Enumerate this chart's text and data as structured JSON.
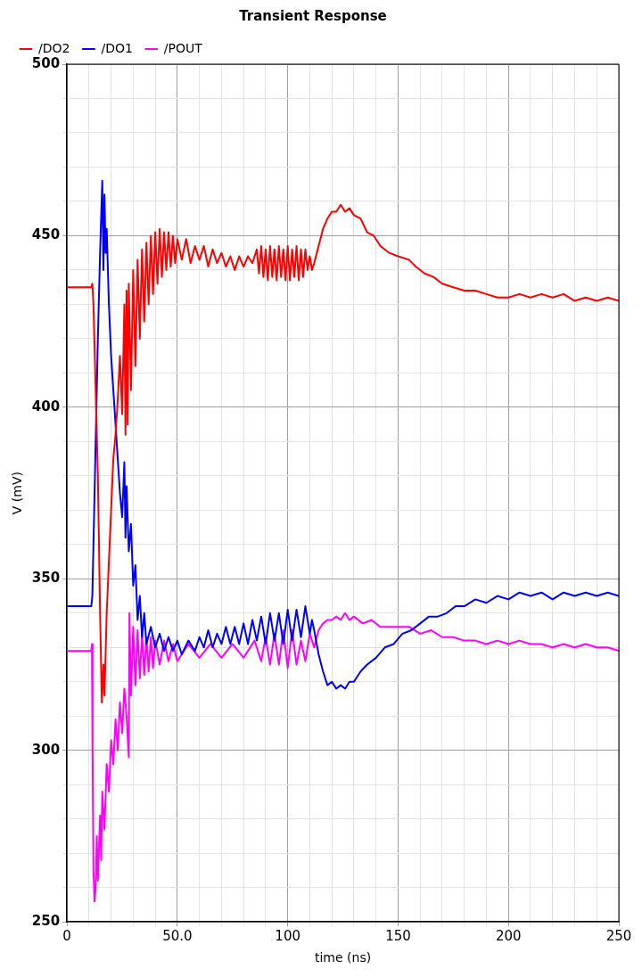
{
  "chart_data": {
    "type": "line",
    "title": "Transient Response",
    "xlabel": "time (ns)",
    "ylabel": "V (mV)",
    "xlim": [
      0,
      250
    ],
    "xticks": [
      0,
      {
        "value": 10,
        "label": null
      },
      {
        "value": 20,
        "label": null
      },
      {
        "value": 30,
        "label": null
      },
      {
        "value": 40,
        "label": null
      },
      {
        "value": 50,
        "label": "50.0"
      },
      {
        "value": 60,
        "label": null
      },
      {
        "value": 70,
        "label": null
      },
      {
        "value": 80,
        "label": null
      },
      {
        "value": 90,
        "label": null
      },
      100,
      {
        "value": 110,
        "label": null
      },
      {
        "value": 120,
        "label": null
      },
      {
        "value": 130,
        "label": null
      },
      {
        "value": 140,
        "label": null
      },
      150,
      {
        "value": 160,
        "label": null
      },
      {
        "value": 170,
        "label": null
      },
      {
        "value": 180,
        "label": null
      },
      {
        "value": 190,
        "label": null
      },
      200,
      {
        "value": 210,
        "label": null
      },
      {
        "value": 220,
        "label": null
      },
      {
        "value": 230,
        "label": null
      },
      {
        "value": 240,
        "label": null
      },
      250
    ],
    "ylim": [
      250,
      500
    ],
    "yticks": [
      250,
      {
        "value": 260,
        "label": null
      },
      {
        "value": 270,
        "label": null
      },
      {
        "value": 280,
        "label": null
      },
      {
        "value": 290,
        "label": null
      },
      300,
      {
        "value": 310,
        "label": null
      },
      {
        "value": 320,
        "label": null
      },
      {
        "value": 330,
        "label": null
      },
      {
        "value": 340,
        "label": null
      },
      350,
      {
        "value": 360,
        "label": null
      },
      {
        "value": 370,
        "label": null
      },
      {
        "value": 380,
        "label": null
      },
      {
        "value": 390,
        "label": null
      },
      400,
      {
        "value": 410,
        "label": null
      },
      {
        "value": 420,
        "label": null
      },
      {
        "value": 430,
        "label": null
      },
      {
        "value": 440,
        "label": null
      },
      450,
      {
        "value": 460,
        "label": null
      },
      {
        "value": 470,
        "label": null
      },
      {
        "value": 480,
        "label": null
      },
      {
        "value": 490,
        "label": null
      },
      500
    ],
    "grid": true,
    "legend": "top left",
    "marker": "none",
    "line_style": "solid",
    "series": [
      {
        "name": "/DO2",
        "color": "#ff0000",
        "x": [
          0,
          11,
          11.5,
          12,
          13,
          14,
          15,
          15.8,
          16.5,
          17,
          18,
          19,
          20,
          21,
          22,
          23,
          24,
          25,
          26,
          26.5,
          27,
          27.5,
          28,
          29,
          30,
          31,
          32,
          33,
          34,
          35,
          36,
          37,
          38,
          39,
          40,
          41,
          42,
          43,
          44,
          45,
          46,
          47,
          48,
          49,
          50,
          52,
          54,
          56,
          58,
          60,
          62,
          64,
          66,
          68,
          70,
          72,
          74,
          76,
          78,
          80,
          82,
          84,
          86,
          87,
          88,
          89,
          90,
          91,
          92,
          93,
          94,
          95,
          96,
          97,
          98,
          99,
          100,
          101,
          102,
          103,
          104,
          105,
          106,
          107,
          108,
          109,
          110,
          111,
          112,
          114,
          116,
          118,
          120,
          122,
          124,
          126,
          128,
          130,
          133,
          136,
          139,
          142,
          146,
          150,
          155,
          158,
          162,
          166,
          170,
          175,
          180,
          185,
          190,
          195,
          200,
          205,
          210,
          215,
          220,
          225,
          230,
          235,
          240,
          245,
          250
        ],
        "values": [
          435,
          435,
          436,
          430,
          405,
          380,
          340,
          314,
          325,
          316,
          340,
          355,
          370,
          385,
          392,
          402,
          415,
          398,
          430,
          392,
          434,
          395,
          436,
          405,
          440,
          412,
          443,
          420,
          446,
          425,
          448,
          430,
          450,
          433,
          451,
          436,
          452,
          438,
          451,
          440,
          451,
          441,
          450,
          442,
          449,
          443,
          449,
          442,
          447,
          443,
          447,
          441,
          446,
          442,
          445,
          441,
          444,
          440,
          444,
          441,
          444,
          442,
          446,
          439,
          447,
          438,
          446,
          437,
          447,
          438,
          446,
          437,
          447,
          438,
          446,
          437,
          447,
          437,
          446,
          438,
          447,
          437,
          446,
          438,
          446,
          440,
          444,
          440,
          442,
          447,
          452,
          455,
          457,
          457,
          459,
          457,
          458,
          456,
          455,
          451,
          450,
          447,
          445,
          444,
          443,
          441,
          439,
          438,
          436,
          435,
          434,
          434,
          433,
          432,
          432,
          433,
          432,
          433,
          432,
          433,
          431,
          432,
          431,
          432,
          431
        ]
      },
      {
        "name": "/DO1",
        "color": "#0000ff",
        "x": [
          0,
          11,
          11.5,
          12,
          13,
          14,
          15,
          16,
          16.5,
          17,
          17.5,
          18,
          19,
          20,
          21,
          22,
          23,
          24,
          25,
          26,
          26.5,
          27,
          28,
          29,
          30,
          31,
          32,
          33,
          34,
          35,
          36,
          38,
          40,
          42,
          44,
          46,
          48,
          50,
          52,
          55,
          58,
          60,
          62,
          64,
          66,
          68,
          70,
          72,
          74,
          76,
          78,
          80,
          82,
          84,
          86,
          88,
          90,
          92,
          94,
          96,
          98,
          100,
          102,
          104,
          106,
          108,
          110,
          111,
          112,
          114,
          116,
          118,
          120,
          122,
          124,
          126,
          128,
          130,
          133,
          136,
          140,
          144,
          148,
          152,
          156,
          160,
          164,
          168,
          172,
          176,
          180,
          185,
          190,
          195,
          200,
          205,
          210,
          215,
          220,
          225,
          230,
          235,
          240,
          245,
          250
        ],
        "values": [
          342,
          342,
          345,
          360,
          390,
          420,
          445,
          466,
          440,
          462,
          445,
          452,
          430,
          415,
          405,
          395,
          385,
          375,
          368,
          384,
          362,
          377,
          358,
          366,
          348,
          354,
          338,
          345,
          333,
          340,
          331,
          336,
          330,
          334,
          329,
          333,
          329,
          332,
          328,
          332,
          329,
          333,
          330,
          335,
          330,
          334,
          331,
          336,
          331,
          336,
          331,
          337,
          331,
          338,
          332,
          339,
          331,
          340,
          332,
          340,
          331,
          341,
          332,
          341,
          333,
          342,
          334,
          338,
          335,
          328,
          323,
          319,
          320,
          318,
          319,
          318,
          320,
          320,
          323,
          325,
          327,
          330,
          331,
          334,
          335,
          337,
          339,
          339,
          340,
          342,
          342,
          344,
          343,
          345,
          344,
          346,
          345,
          346,
          344,
          346,
          345,
          346,
          345,
          346,
          345
        ]
      },
      {
        "name": "/POUT",
        "color": "#ff00ff",
        "x": [
          0,
          11,
          11.3,
          11.6,
          12,
          12.5,
          13,
          13.5,
          14,
          15,
          15.5,
          16,
          17,
          18,
          19,
          20,
          21,
          22,
          23,
          24,
          25,
          26,
          27,
          28,
          28.3,
          29,
          30,
          31,
          32,
          33,
          34,
          35,
          36,
          37,
          38,
          39,
          40,
          42,
          44,
          46,
          48,
          50,
          55,
          60,
          65,
          70,
          75,
          80,
          85,
          88,
          90,
          92,
          94,
          96,
          98,
          100,
          102,
          104,
          106,
          108,
          110,
          112,
          114,
          116,
          118,
          120,
          122,
          124,
          126,
          128,
          130,
          134,
          138,
          142,
          146,
          150,
          155,
          160,
          165,
          170,
          175,
          180,
          185,
          190,
          195,
          200,
          205,
          210,
          215,
          220,
          225,
          230,
          235,
          240,
          245,
          250
        ],
        "values": [
          329,
          329,
          331,
          300,
          265,
          256,
          260,
          275,
          262,
          281,
          268,
          288,
          277,
          296,
          288,
          303,
          296,
          309,
          300,
          314,
          305,
          318,
          310,
          298,
          340,
          316,
          336,
          319,
          335,
          321,
          334,
          322,
          333,
          323,
          333,
          324,
          332,
          325,
          332,
          326,
          331,
          326,
          331,
          327,
          331,
          327,
          331,
          327,
          332,
          326,
          333,
          325,
          334,
          325,
          335,
          324,
          335,
          325,
          332,
          326,
          334,
          330,
          335,
          337,
          338,
          338,
          339,
          338,
          340,
          338,
          339,
          337,
          338,
          336,
          336,
          336,
          336,
          334,
          335,
          333,
          333,
          332,
          332,
          331,
          332,
          331,
          332,
          331,
          331,
          330,
          331,
          330,
          331,
          330,
          330,
          329
        ]
      }
    ]
  }
}
